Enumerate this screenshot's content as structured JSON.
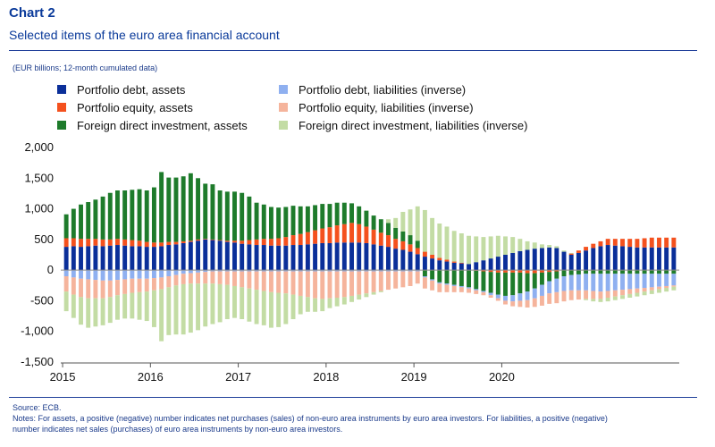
{
  "header": {
    "title": "Chart 2",
    "subtitle": "Selected items of the euro area financial account",
    "units": "(EUR billions; 12-month cumulated data)"
  },
  "footer": {
    "source": "Source: ECB.",
    "notes_line1": "Notes: For assets, a positive (negative) number indicates net purchases (sales) of non-euro area instruments by euro area investors. For liabilities, a positive (negative)",
    "notes_line2": "number indicates net sales (purchases) of euro area instruments by non-euro area investors."
  },
  "colors": {
    "pd_assets": "#0b2f99",
    "pe_assets": "#f4511e",
    "fdi_assets": "#1e7b2b",
    "pd_liab": "#8fb0f0",
    "pe_liab": "#f5b49c",
    "fdi_liab": "#c3dca4"
  },
  "chart_data": {
    "type": "bar",
    "stacked": true,
    "yticks": [
      "2,000",
      "1,500",
      "1,000",
      "500",
      "0",
      "-500",
      "-1,000",
      "-1,500"
    ],
    "xticks": [
      "2015",
      "2016",
      "2017",
      "2018",
      "2019",
      "2020"
    ],
    "ylim": [
      -1500,
      2000
    ],
    "grid": false,
    "legend_position": "top",
    "months_start": "2015-01",
    "series": [
      {
        "key": "pd_assets",
        "name": "Portfolio debt, assets",
        "values": [
          380,
          390,
          380,
          390,
          400,
          390,
          400,
          410,
          400,
          390,
          390,
          380,
          380,
          390,
          410,
          420,
          440,
          460,
          480,
          500,
          490,
          480,
          460,
          450,
          430,
          420,
          410,
          410,
          400,
          400,
          400,
          410,
          410,
          420,
          430,
          440,
          440,
          450,
          450,
          450,
          450,
          440,
          420,
          400,
          380,
          350,
          330,
          300,
          260,
          220,
          190,
          160,
          140,
          120,
          110,
          100,
          130,
          160,
          190,
          220,
          250,
          280,
          310,
          330,
          350,
          360,
          370,
          360,
          300,
          250,
          280,
          320,
          360,
          390,
          410,
          400,
          390,
          380,
          370,
          370,
          370,
          370,
          370,
          370
        ]
      },
      {
        "key": "pe_assets",
        "name": "Portfolio equity, assets",
        "values": [
          140,
          130,
          130,
          120,
          110,
          110,
          100,
          100,
          100,
          100,
          90,
          80,
          70,
          60,
          50,
          40,
          30,
          20,
          20,
          10,
          10,
          10,
          20,
          30,
          50,
          70,
          90,
          100,
          110,
          120,
          140,
          160,
          180,
          200,
          220,
          240,
          260,
          280,
          300,
          320,
          300,
          270,
          240,
          210,
          190,
          160,
          140,
          120,
          100,
          80,
          60,
          40,
          30,
          20,
          10,
          0,
          -10,
          -20,
          -30,
          -40,
          -40,
          -40,
          -40,
          -50,
          -50,
          -40,
          -30,
          -20,
          0,
          20,
          40,
          60,
          70,
          80,
          100,
          110,
          120,
          130,
          140,
          150,
          160,
          160,
          160,
          160
        ]
      },
      {
        "key": "fdi_assets",
        "name": "Foreign direct investment, assets",
        "values": [
          390,
          480,
          560,
          600,
          640,
          700,
          760,
          790,
          800,
          820,
          840,
          840,
          900,
          1150,
          1050,
          1050,
          1060,
          1100,
          1000,
          900,
          900,
          810,
          800,
          800,
          780,
          710,
          600,
          560,
          520,
          500,
          490,
          480,
          450,
          420,
          410,
          400,
          380,
          370,
          350,
          320,
          290,
          260,
          230,
          220,
          200,
          180,
          160,
          150,
          120,
          -100,
          -150,
          -200,
          -220,
          -240,
          -260,
          -280,
          -300,
          -320,
          -340,
          -360,
          -380,
          -370,
          -340,
          -300,
          -250,
          -200,
          -150,
          -120,
          -100,
          -80,
          -70,
          -60,
          -60,
          -60,
          -60,
          -60,
          -60,
          -60,
          -60,
          -60,
          -60,
          -60,
          -60,
          -60
        ]
      },
      {
        "key": "pd_liab",
        "name": "Portfolio debt, liabilities (inverse)",
        "values": [
          -100,
          -120,
          -140,
          -150,
          -160,
          -170,
          -170,
          -160,
          -150,
          -140,
          -140,
          -140,
          -130,
          -120,
          -100,
          -80,
          -60,
          -50,
          -40,
          -30,
          -20,
          -20,
          -20,
          -20,
          -20,
          -20,
          -20,
          -20,
          -20,
          -20,
          -20,
          -20,
          -20,
          -20,
          -20,
          -20,
          -20,
          -20,
          -20,
          -20,
          -20,
          -20,
          -20,
          -20,
          -20,
          -20,
          -20,
          -20,
          -20,
          -20,
          -20,
          -20,
          -20,
          -20,
          -20,
          -20,
          -20,
          -20,
          -40,
          -60,
          -80,
          -100,
          -120,
          -140,
          -160,
          -180,
          -200,
          -220,
          -240,
          -250,
          -260,
          -270,
          -280,
          -290,
          -280,
          -270,
          -260,
          -250,
          -240,
          -230,
          -220,
          -210,
          -200,
          -190
        ]
      },
      {
        "key": "pe_liab",
        "name": "Portfolio equity, liabilities (inverse)",
        "values": [
          -250,
          -280,
          -300,
          -310,
          -300,
          -290,
          -270,
          -250,
          -240,
          -230,
          -220,
          -210,
          -200,
          -190,
          -180,
          -170,
          -170,
          -170,
          -180,
          -190,
          -200,
          -210,
          -220,
          -240,
          -260,
          -280,
          -300,
          -320,
          -340,
          -350,
          -360,
          -380,
          -400,
          -420,
          -440,
          -450,
          -440,
          -430,
          -420,
          -400,
          -380,
          -360,
          -340,
          -320,
          -300,
          -280,
          -260,
          -240,
          -200,
          -180,
          -160,
          -140,
          -120,
          -100,
          -80,
          -70,
          -60,
          -50,
          -40,
          -40,
          -60,
          -80,
          -100,
          -120,
          -140,
          -160,
          -170,
          -180,
          -170,
          -160,
          -150,
          -140,
          -130,
          -120,
          -110,
          -100,
          -90,
          -80,
          -70,
          -60,
          -50,
          -40,
          -30,
          -20
        ]
      },
      {
        "key": "fdi_liab",
        "name": "Foreign direct investment, liabilities (inverse)",
        "values": [
          -320,
          -380,
          -450,
          -480,
          -460,
          -440,
          -420,
          -400,
          -400,
          -420,
          -450,
          -480,
          -600,
          -850,
          -780,
          -800,
          -820,
          -800,
          -760,
          -700,
          -660,
          -620,
          -560,
          -520,
          -520,
          -540,
          -560,
          -560,
          -580,
          -560,
          -500,
          -400,
          -300,
          -240,
          -220,
          -200,
          -160,
          -140,
          -120,
          -100,
          -80,
          -60,
          -40,
          -20,
          60,
          160,
          320,
          420,
          560,
          680,
          600,
          560,
          540,
          500,
          480,
          460,
          420,
          380,
          360,
          340,
          300,
          260,
          200,
          140,
          100,
          60,
          40,
          30,
          20,
          10,
          0,
          -20,
          -40,
          -50,
          -60,
          -60,
          -60,
          -60,
          -60,
          -60,
          -60,
          -60,
          -60,
          -60
        ]
      }
    ]
  }
}
